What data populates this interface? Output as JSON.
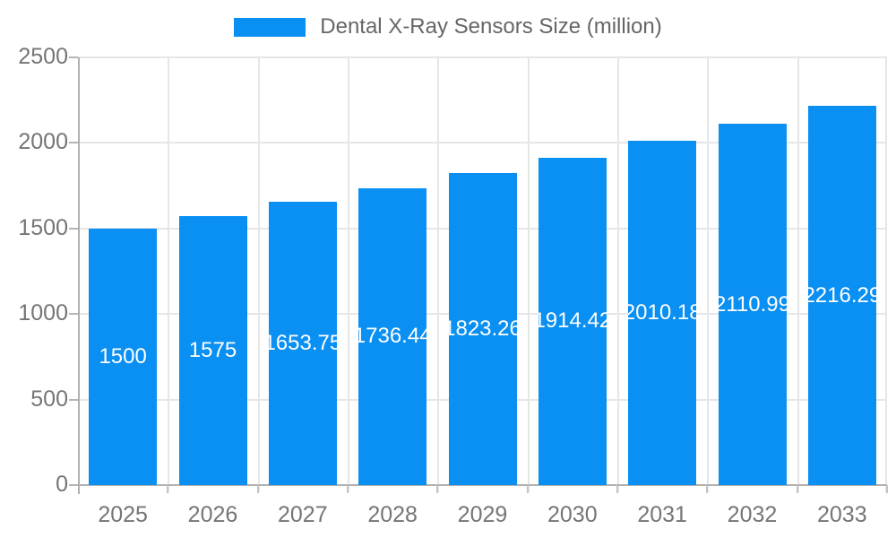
{
  "chart_data": {
    "type": "bar",
    "title": "Dental X-Ray Sensors Size (million)",
    "categories": [
      "2025",
      "2026",
      "2027",
      "2028",
      "2029",
      "2030",
      "2031",
      "2032",
      "2033"
    ],
    "values": [
      1500,
      1575,
      1653.75,
      1736.44,
      1823.26,
      1914.42,
      2010.18,
      2110.99,
      2216.29
    ],
    "value_labels": [
      "1500",
      "1575",
      "1653.75",
      "1736.44",
      "1823.26",
      "1914.42",
      "2010.18",
      "2110.99",
      "2216.29"
    ],
    "y_ticks": [
      0,
      500,
      1000,
      1500,
      2000,
      2500
    ],
    "ylim": [
      0,
      2500
    ],
    "xlabel": "",
    "ylabel": "",
    "grid": true,
    "legend_position": "top-center",
    "bar_color": "#0a8ff2",
    "bar_label_color": "#ffffff",
    "axis_text_color": "#757575",
    "legend_text_color": "#666666",
    "gridline_color": "#e6e6e6",
    "axis_line_color": "#b0b0b0"
  }
}
